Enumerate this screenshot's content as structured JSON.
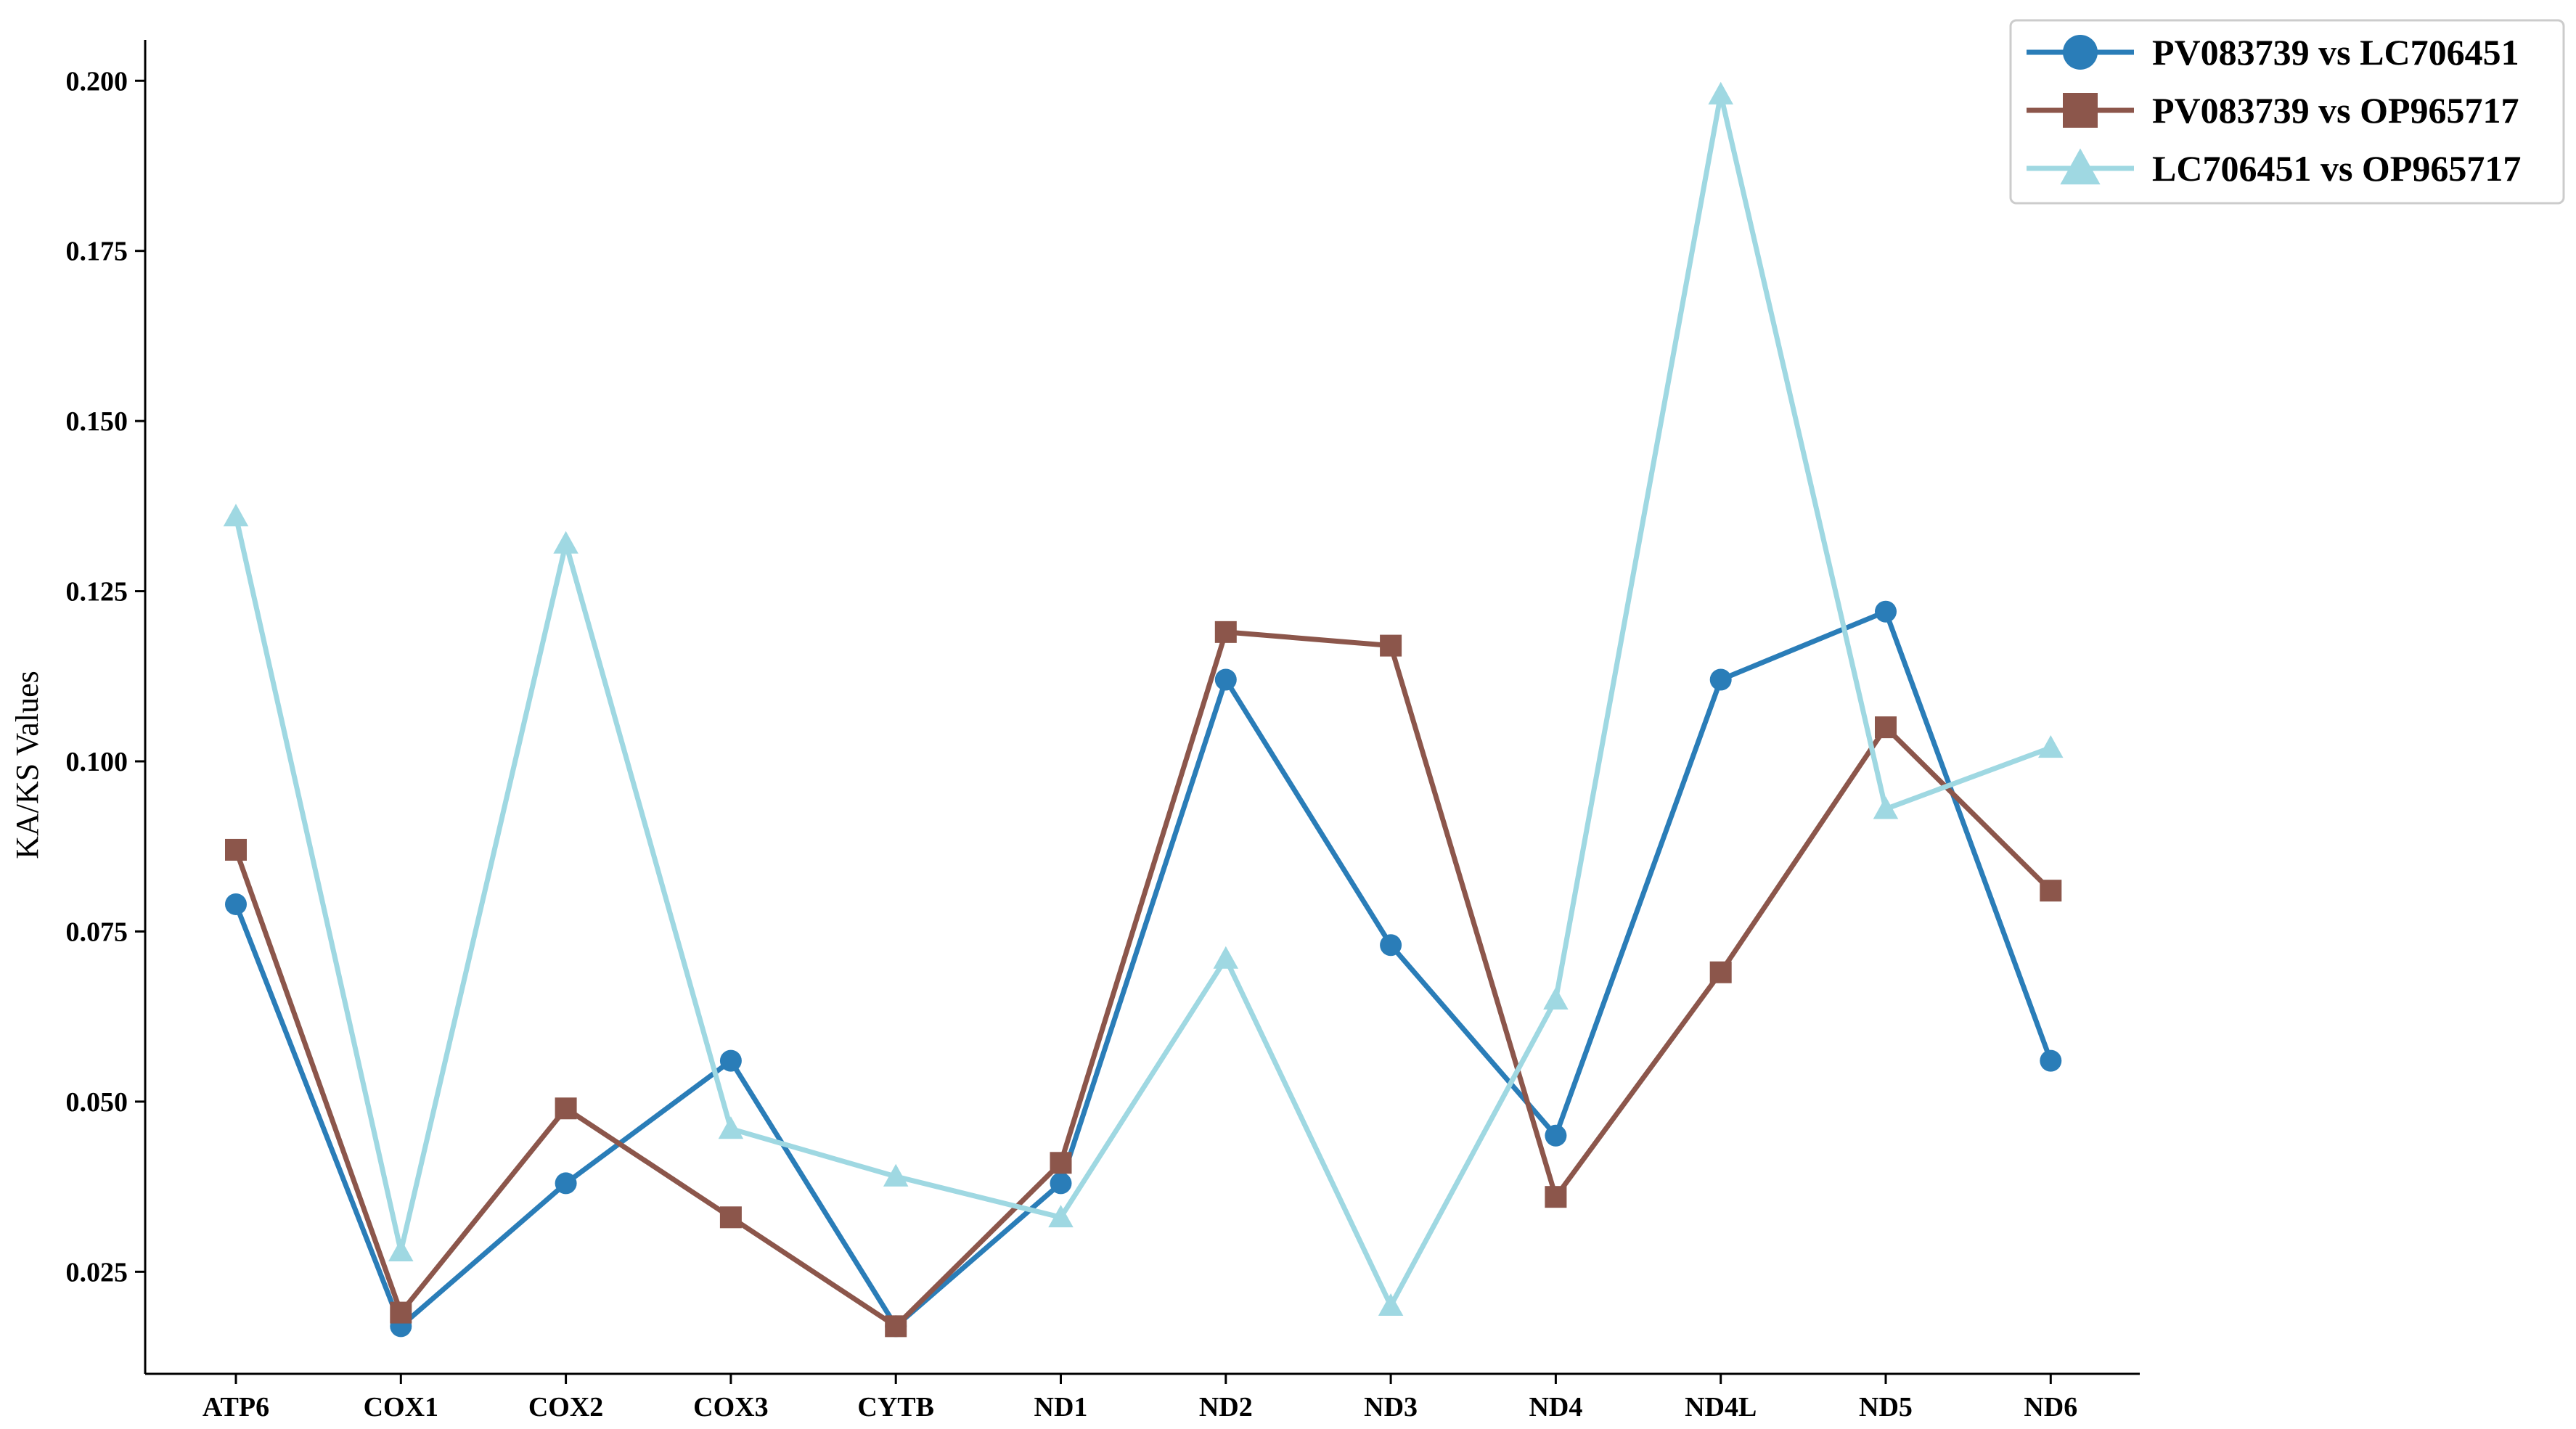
{
  "chart_data": {
    "type": "line",
    "categories": [
      "ATP6",
      "COX1",
      "COX2",
      "COX3",
      "CYTB",
      "ND1",
      "ND2",
      "ND3",
      "ND4",
      "ND4L",
      "ND5",
      "ND6"
    ],
    "ylabel": "KA/KS Values",
    "xlabel": "",
    "title": "",
    "ylim": [
      0.01,
      0.206
    ],
    "yticks": [
      "0.025",
      "0.050",
      "0.075",
      "0.100",
      "0.125",
      "0.150",
      "0.175",
      "0.200"
    ],
    "legend_position": "top-right",
    "grid": false,
    "series": [
      {
        "name": "PV083739 vs LC706451",
        "color": "#2a7db8",
        "marker": "circle",
        "values": [
          0.079,
          0.017,
          0.038,
          0.056,
          0.017,
          0.038,
          0.112,
          0.073,
          0.045,
          0.112,
          0.122,
          0.056
        ]
      },
      {
        "name": "PV083739 vs OP965717",
        "color": "#8c564b",
        "marker": "square",
        "values": [
          0.087,
          0.019,
          0.049,
          0.033,
          0.017,
          0.041,
          0.119,
          0.117,
          0.036,
          0.069,
          0.105,
          0.081
        ]
      },
      {
        "name": "LC706451 vs OP965717",
        "color": "#9fd8e2",
        "marker": "triangle",
        "values": [
          0.136,
          0.028,
          0.132,
          0.046,
          0.039,
          0.033,
          0.071,
          0.02,
          0.065,
          0.198,
          0.093,
          0.102
        ]
      }
    ]
  }
}
